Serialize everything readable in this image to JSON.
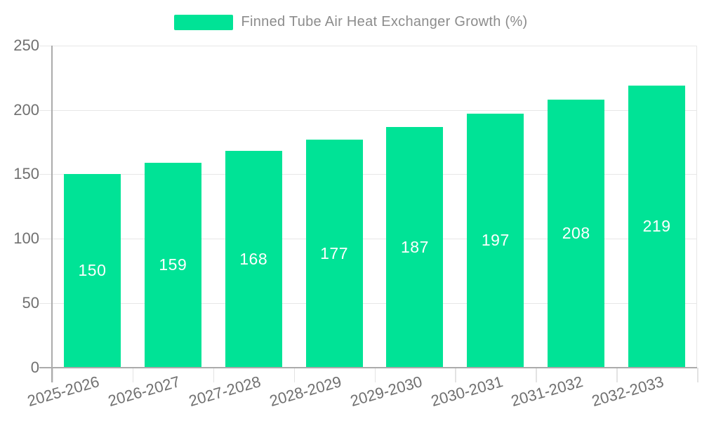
{
  "chart_data": {
    "type": "bar",
    "title": "Finned Tube Air Heat Exchanger Growth (%)",
    "categories": [
      "2025-2026",
      "2026-2027",
      "2027-2028",
      "2028-2029",
      "2029-2030",
      "2030-2031",
      "2031-2032",
      "2032-2033"
    ],
    "series": [
      {
        "name": "Finned Tube Air Heat Exchanger Growth (%)",
        "values": [
          150,
          159,
          168,
          177,
          187,
          197,
          208,
          219
        ]
      }
    ],
    "xlabel": "",
    "ylabel": "",
    "ylim": [
      0,
      250
    ],
    "yticks": [
      0,
      50,
      100,
      150,
      200,
      250
    ],
    "grid": true,
    "legend_position": "top",
    "bar_color": "#00E396",
    "bar_label_color": "#ffffff",
    "axis_label_color": "#707070",
    "legend_text_color": "#8c8c8c",
    "grid_color": "#e7e7e7",
    "axis_line_color": "#ababab"
  }
}
